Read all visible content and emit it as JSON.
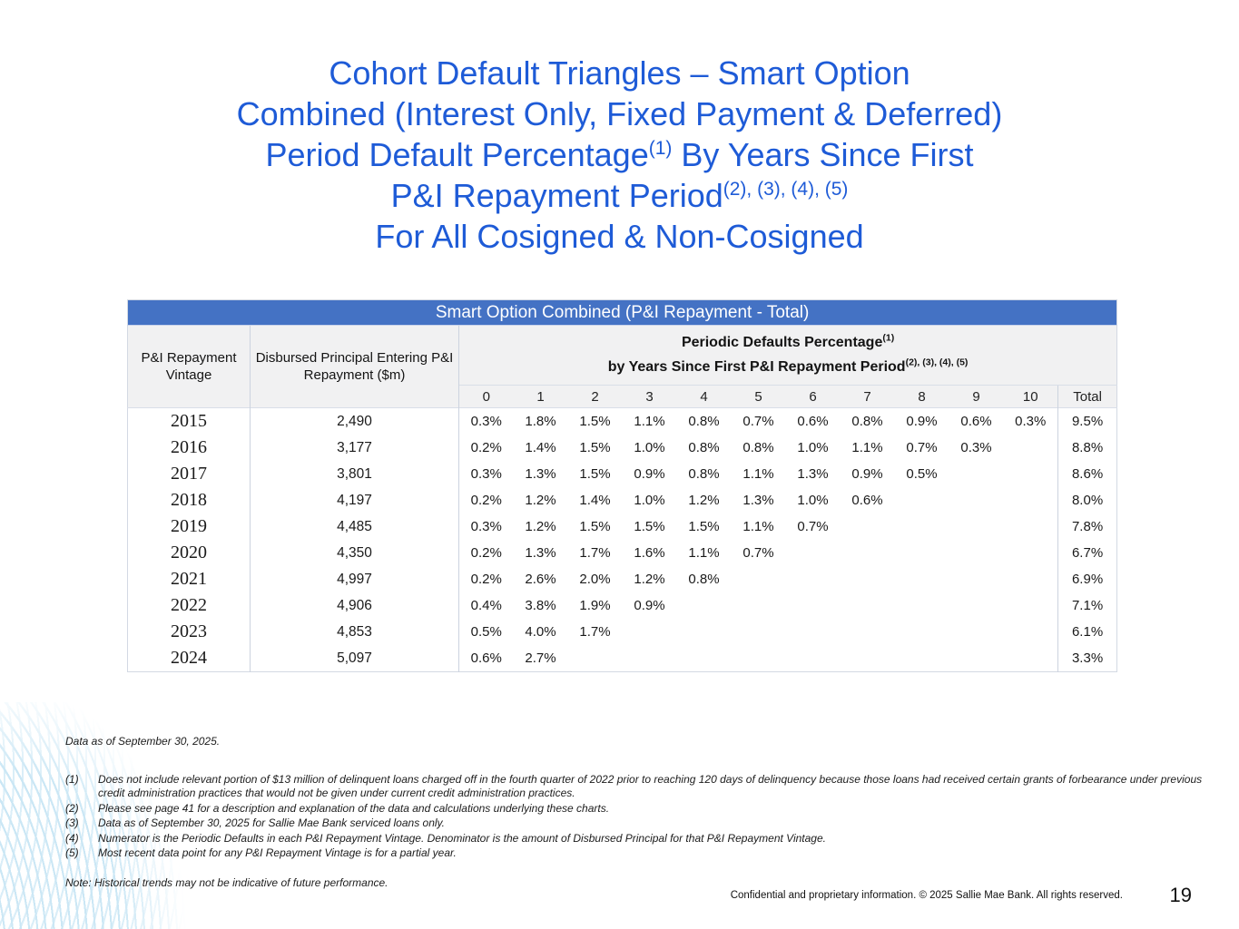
{
  "title": {
    "line1": "Cohort Default Triangles – Smart Option",
    "line2": "Combined (Interest Only, Fixed Payment & Deferred)",
    "line3_pre": "Period Default Percentage",
    "line3_sup": "(1)",
    "line3_post": " By Years Since First",
    "line4_pre": "P&I Repayment Period",
    "line4_sup": "(2), (3), (4), (5)",
    "line5": "For All Cosigned & Non-Cosigned"
  },
  "table": {
    "banner": "Smart Option Combined (P&I Repayment - Total)",
    "col1_header": "P&I Repayment Vintage",
    "col2_header": "Disbursed Principal Entering P&I Repayment ($m)",
    "periodic_line1": "Periodic Defaults Percentage",
    "periodic_line1_sup": "(1)",
    "periodic_line2": "by Years Since First P&I Repayment Period",
    "periodic_line2_sup": "(2), (3), (4), (5)",
    "year_cols": [
      "0",
      "1",
      "2",
      "3",
      "4",
      "5",
      "6",
      "7",
      "8",
      "9",
      "10",
      "Total"
    ],
    "rows": [
      {
        "vintage": "2015",
        "principal": "2,490",
        "values": [
          "0.3%",
          "1.8%",
          "1.5%",
          "1.1%",
          "0.8%",
          "0.7%",
          "0.6%",
          "0.8%",
          "0.9%",
          "0.6%",
          "0.3%"
        ],
        "total": "9.5%"
      },
      {
        "vintage": "2016",
        "principal": "3,177",
        "values": [
          "0.2%",
          "1.4%",
          "1.5%",
          "1.0%",
          "0.8%",
          "0.8%",
          "1.0%",
          "1.1%",
          "0.7%",
          "0.3%"
        ],
        "total": "8.8%"
      },
      {
        "vintage": "2017",
        "principal": "3,801",
        "values": [
          "0.3%",
          "1.3%",
          "1.5%",
          "0.9%",
          "0.8%",
          "1.1%",
          "1.3%",
          "0.9%",
          "0.5%"
        ],
        "total": "8.6%"
      },
      {
        "vintage": "2018",
        "principal": "4,197",
        "values": [
          "0.2%",
          "1.2%",
          "1.4%",
          "1.0%",
          "1.2%",
          "1.3%",
          "1.0%",
          "0.6%"
        ],
        "total": "8.0%"
      },
      {
        "vintage": "2019",
        "principal": "4,485",
        "values": [
          "0.3%",
          "1.2%",
          "1.5%",
          "1.5%",
          "1.5%",
          "1.1%",
          "0.7%"
        ],
        "total": "7.8%"
      },
      {
        "vintage": "2020",
        "principal": "4,350",
        "values": [
          "0.2%",
          "1.3%",
          "1.7%",
          "1.6%",
          "1.1%",
          "0.7%"
        ],
        "total": "6.7%"
      },
      {
        "vintage": "2021",
        "principal": "4,997",
        "values": [
          "0.2%",
          "2.6%",
          "2.0%",
          "1.2%",
          "0.8%"
        ],
        "total": "6.9%"
      },
      {
        "vintage": "2022",
        "principal": "4,906",
        "values": [
          "0.4%",
          "3.8%",
          "1.9%",
          "0.9%"
        ],
        "total": "7.1%"
      },
      {
        "vintage": "2023",
        "principal": "4,853",
        "values": [
          "0.5%",
          "4.0%",
          "1.7%"
        ],
        "total": "6.1%"
      },
      {
        "vintage": "2024",
        "principal": "5,097",
        "values": [
          "0.6%",
          "2.7%"
        ],
        "total": "3.3%"
      }
    ]
  },
  "footnotes": {
    "data_as_of": "Data as of September 30, 2025.",
    "items": [
      {
        "num": "(1)",
        "text": "Does not include relevant portion of $13 million of delinquent loans charged off in the fourth quarter of 2022 prior to reaching 120 days of delinquency because those loans had received certain grants of forbearance under previous credit administration practices that would not be given under current credit administration practices."
      },
      {
        "num": "(2)",
        "text": "Please see page 41 for a description and explanation of the data and calculations underlying these charts."
      },
      {
        "num": "(3)",
        "text": "Data as of September 30, 2025 for Sallie Mae Bank serviced loans only."
      },
      {
        "num": "(4)",
        "text": "Numerator is the Periodic Defaults in each P&I Repayment Vintage. Denominator is the amount of Disbursed Principal for that P&I Repayment Vintage."
      },
      {
        "num": "(5)",
        "text": "Most recent data point for any P&I Repayment Vintage is for a partial year."
      }
    ],
    "note": "Note: Historical trends may not be indicative of future performance."
  },
  "footer": {
    "confidential": "Confidential and proprietary information. © 2025 Sallie Mae Bank. All rights reserved.",
    "page_number": "19"
  },
  "colors": {
    "title_text": "#1e5bd7",
    "table_banner": "#4472c4",
    "header_bg": "#f1f1f2",
    "wave_line": "#cbe7f5"
  }
}
